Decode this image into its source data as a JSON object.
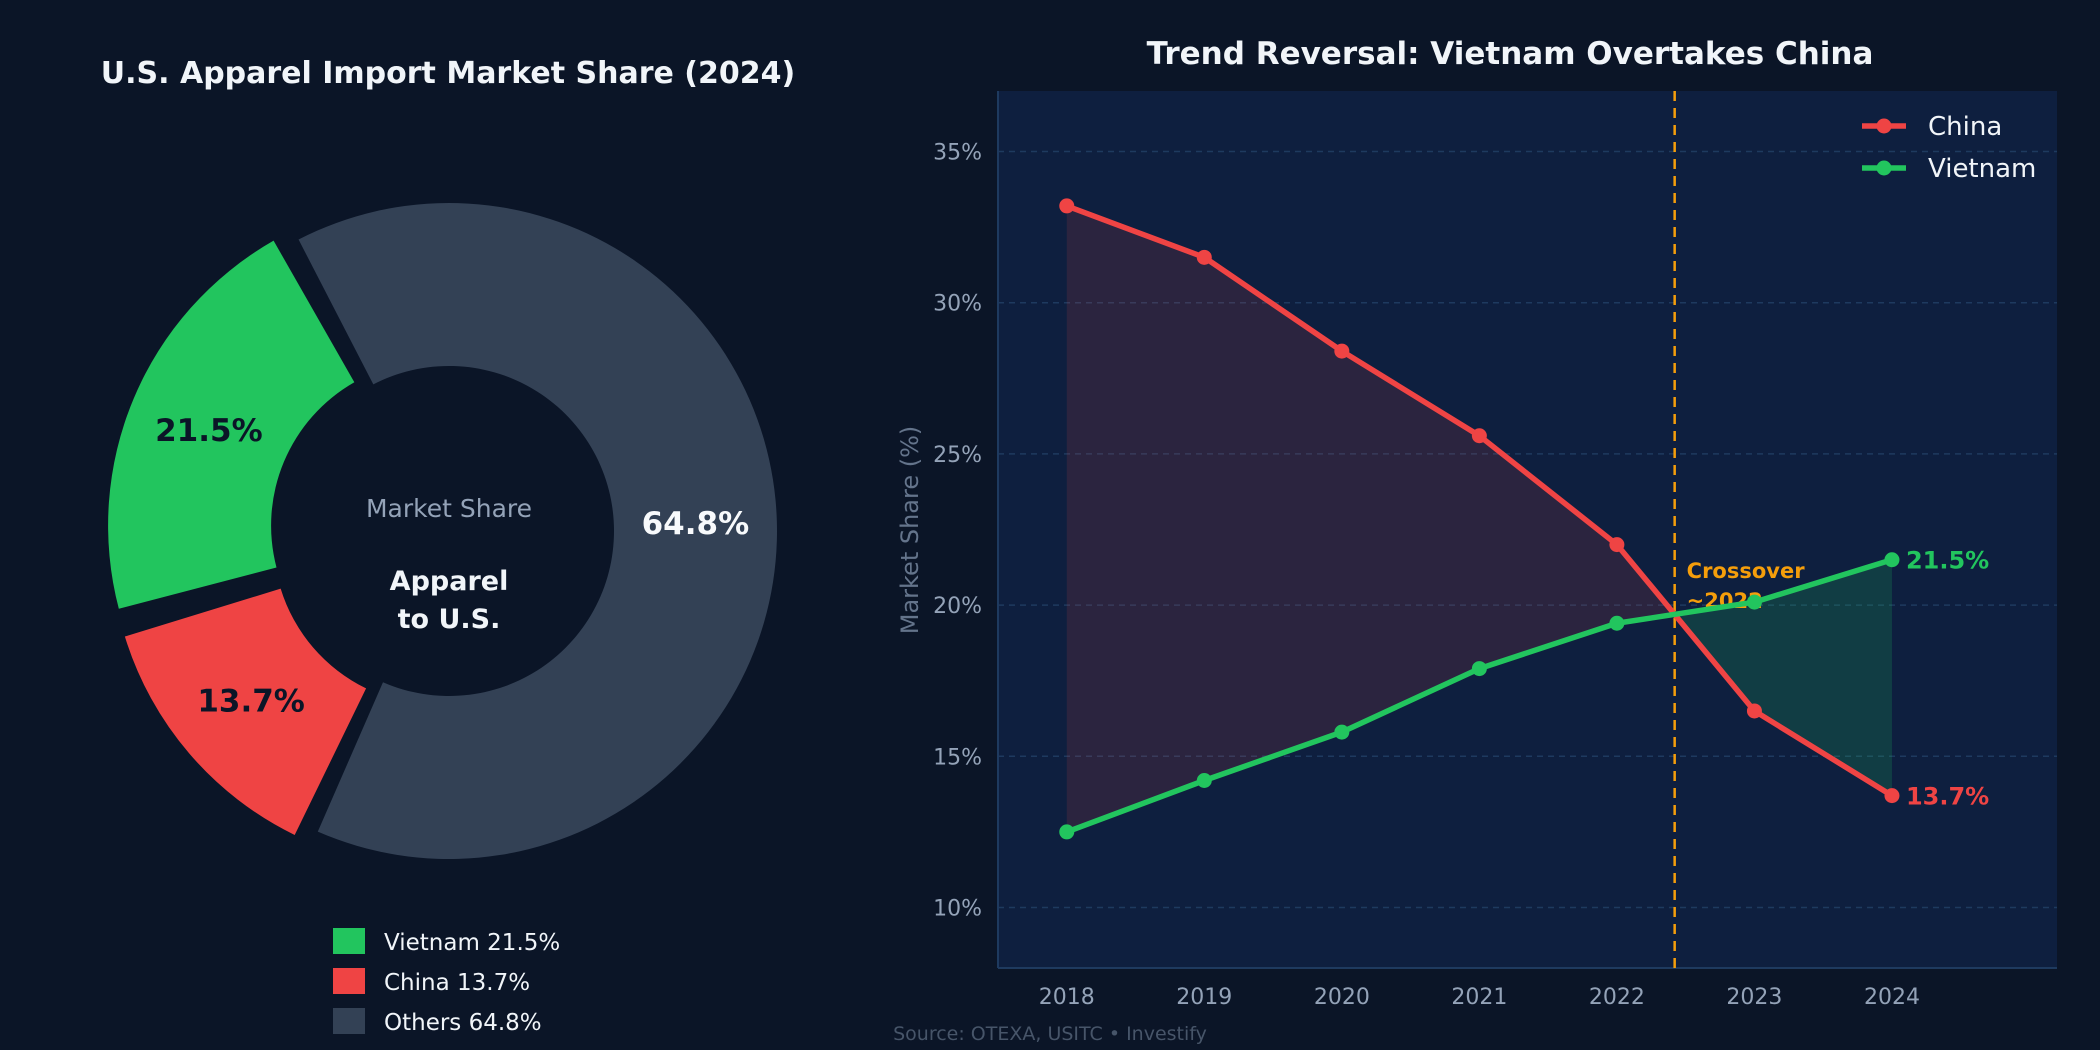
{
  "colors": {
    "background": "#0b1527",
    "plot_bg": "#0e1f3f",
    "vietnam": "#22c55e",
    "china": "#ef4444",
    "others": "#334155",
    "crossover": "#f59e0b",
    "text": "#f1f5f9",
    "muted": "#94a3b8"
  },
  "footer": {
    "source": "Source: OTEXA, USITC  •  Investify"
  },
  "chart_data": [
    {
      "type": "pie",
      "title": "U.S. Apparel Import Market Share (2024)",
      "center_label": {
        "top": "Market Share",
        "main_line1": "Apparel",
        "main_line2": "to U.S."
      },
      "slices": [
        {
          "name": "Vietnam",
          "value": 21.5,
          "label": "21.5%",
          "legend": "Vietnam  21.5%",
          "color": "#22c55e"
        },
        {
          "name": "China",
          "value": 13.7,
          "label": "13.7%",
          "legend": "China  13.7%",
          "color": "#ef4444"
        },
        {
          "name": "Others",
          "value": 64.8,
          "label": "64.8%",
          "legend": "Others  64.8%",
          "color": "#334155"
        }
      ],
      "legend_placement": "bottom"
    },
    {
      "type": "line",
      "title": "Trend Reversal: Vietnam Overtakes China",
      "xlabel": "",
      "ylabel": "Market Share (%)",
      "x": [
        2018,
        2019,
        2020,
        2021,
        2022,
        2023,
        2024
      ],
      "xlim": [
        2017.5,
        2025.2
      ],
      "ylim": [
        8,
        37
      ],
      "yticks": [
        10,
        15,
        20,
        25,
        30,
        35
      ],
      "ytick_labels": [
        "10%",
        "15%",
        "20%",
        "25%",
        "30%",
        "35%"
      ],
      "grid": true,
      "legend_placement": "top-right",
      "series": [
        {
          "name": "China",
          "color": "#ef4444",
          "values": [
            33.2,
            31.5,
            28.4,
            25.6,
            22.0,
            16.5,
            13.7
          ],
          "end_label": "13.7%"
        },
        {
          "name": "Vietnam",
          "color": "#22c55e",
          "values": [
            12.5,
            14.2,
            15.8,
            17.9,
            19.4,
            20.1,
            21.5
          ],
          "end_label": "21.5%"
        }
      ],
      "annotation": {
        "x": 2022.42,
        "line1": "Crossover",
        "line2": "~2022"
      }
    }
  ]
}
